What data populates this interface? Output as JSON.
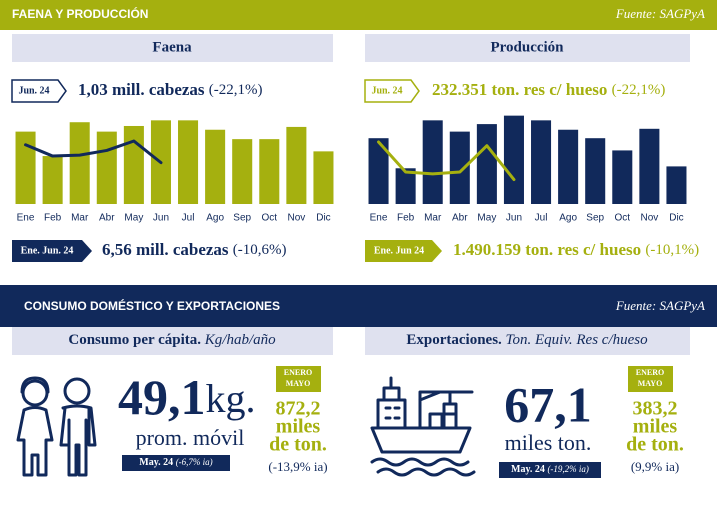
{
  "header": {
    "title": "FAENA Y PRODUCCIÓN",
    "source": "Fuente: SAGPyA"
  },
  "chart_data": [
    {
      "type": "bar",
      "title": "Faena",
      "categories": [
        "Ene",
        "Feb",
        "Mar",
        "Abr",
        "May",
        "Jun",
        "Jul",
        "Ago",
        "Sep",
        "Oct",
        "Nov",
        "Dic"
      ],
      "ylim": [
        0,
        100
      ],
      "series": [
        {
          "type": "bar",
          "color": "#a5b00f",
          "values": [
            77,
            51,
            87,
            77,
            83,
            89,
            89,
            79,
            69,
            69,
            82,
            56
          ]
        },
        {
          "type": "line",
          "color": "#11295b",
          "values": [
            63,
            51,
            52,
            57,
            67,
            44,
            null,
            null,
            null,
            null,
            null,
            null
          ]
        }
      ]
    },
    {
      "type": "bar",
      "title": "Producción",
      "categories": [
        "Ene",
        "Feb",
        "Mar",
        "Abr",
        "May",
        "Jun",
        "Jul",
        "Ago",
        "Sep",
        "Oct",
        "Nov",
        "Dic"
      ],
      "ylim": [
        0,
        100
      ],
      "series": [
        {
          "type": "bar",
          "color": "#11295b",
          "values": [
            70,
            38,
            89,
            77,
            85,
            94,
            89,
            79,
            70,
            57,
            80,
            40
          ]
        },
        {
          "type": "line",
          "color": "#a5b00f",
          "values": [
            66,
            34,
            32,
            34,
            62,
            26,
            null,
            null,
            null,
            null,
            null,
            null
          ]
        }
      ]
    }
  ],
  "summaries": [
    {
      "badge": "Jun. 24",
      "value": "1,03 mill. cabezas",
      "change": "(-22,1%)",
      "ytd_badge": "Ene. Jun. 24",
      "ytd_value": "6,56 mill. cabezas",
      "ytd_change": "(-10,6%)"
    },
    {
      "badge": "Jun. 24",
      "value": "232.351 ton. res c/ hueso",
      "change": "(-22,1%)",
      "ytd_badge": "Ene. Jun 24",
      "ytd_value": "1.490.159 ton. res c/ hueso",
      "ytd_change": "(-10,1%)"
    }
  ],
  "section2": {
    "title": "CONSUMO DOMÉSTICO Y EXPORTACIONES",
    "source": "Fuente: SAGPyA"
  },
  "consumo": {
    "title": "Consumo per cápita.",
    "unit": "Kg/hab/año",
    "value": "49,1",
    "value_unit": "kg.",
    "note": "prom. móvil",
    "badge_period": "May. 24",
    "badge_change": "(-6,7% ia)",
    "period": [
      "ENERO",
      "MAYO"
    ],
    "total": [
      "872,2",
      "miles",
      "de ton."
    ],
    "total_change": "(-13,9% ia)"
  },
  "exportaciones": {
    "title": "Exportaciones.",
    "unit": "Ton. Equiv. Res c/hueso",
    "value": "67,1",
    "note": "miles ton.",
    "badge_period": "May. 24",
    "badge_change": "(-19,2% ia)",
    "period": [
      "ENERO",
      "MAYO"
    ],
    "total": [
      "383,2",
      "miles",
      "de ton."
    ],
    "total_change": "(9,9% ia)"
  }
}
